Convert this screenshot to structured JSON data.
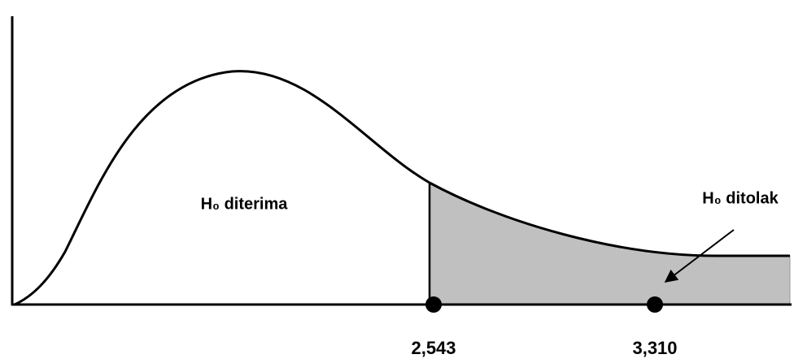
{
  "labels": {
    "accept": "H₀ diterima",
    "reject": "H₀ ditolak"
  },
  "critical_values": [
    "2,543",
    "3,310"
  ]
}
